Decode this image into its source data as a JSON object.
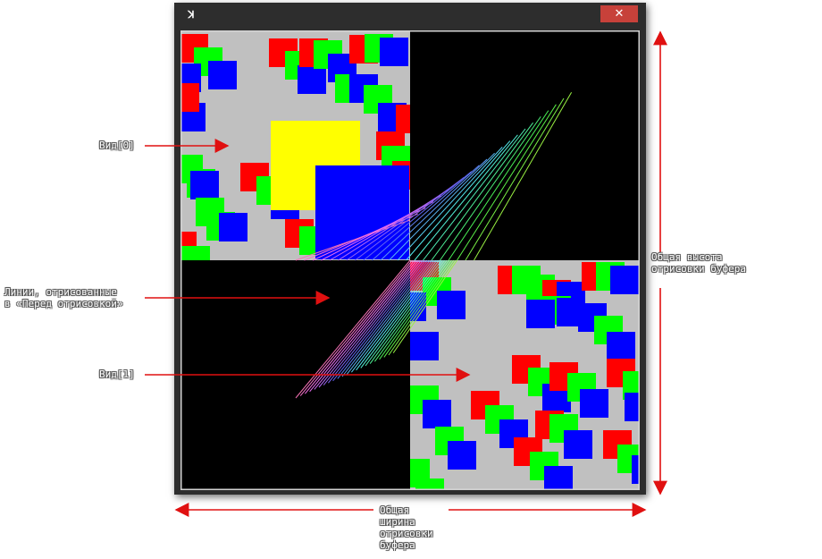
{
  "window": {
    "icon": "app-logo-icon",
    "close_glyph": "✕"
  },
  "annotations": {
    "view0": "Вид[0]",
    "lines_before_draw": "Линии, отрисованные\nв «Перед отрисовкой»",
    "view1": "Вид[1]",
    "total_height": "Общая высота\nотрисовки буфера",
    "total_width": "Общая\nширина\nотрисовки\nбуфера"
  },
  "colors": {
    "arrow": "#e01010",
    "background_gray": "#c0c0c0",
    "red": "#ff0000",
    "green": "#00ff00",
    "blue": "#0000ff",
    "yellow": "#ffff00",
    "close_button": "#c7413a"
  }
}
